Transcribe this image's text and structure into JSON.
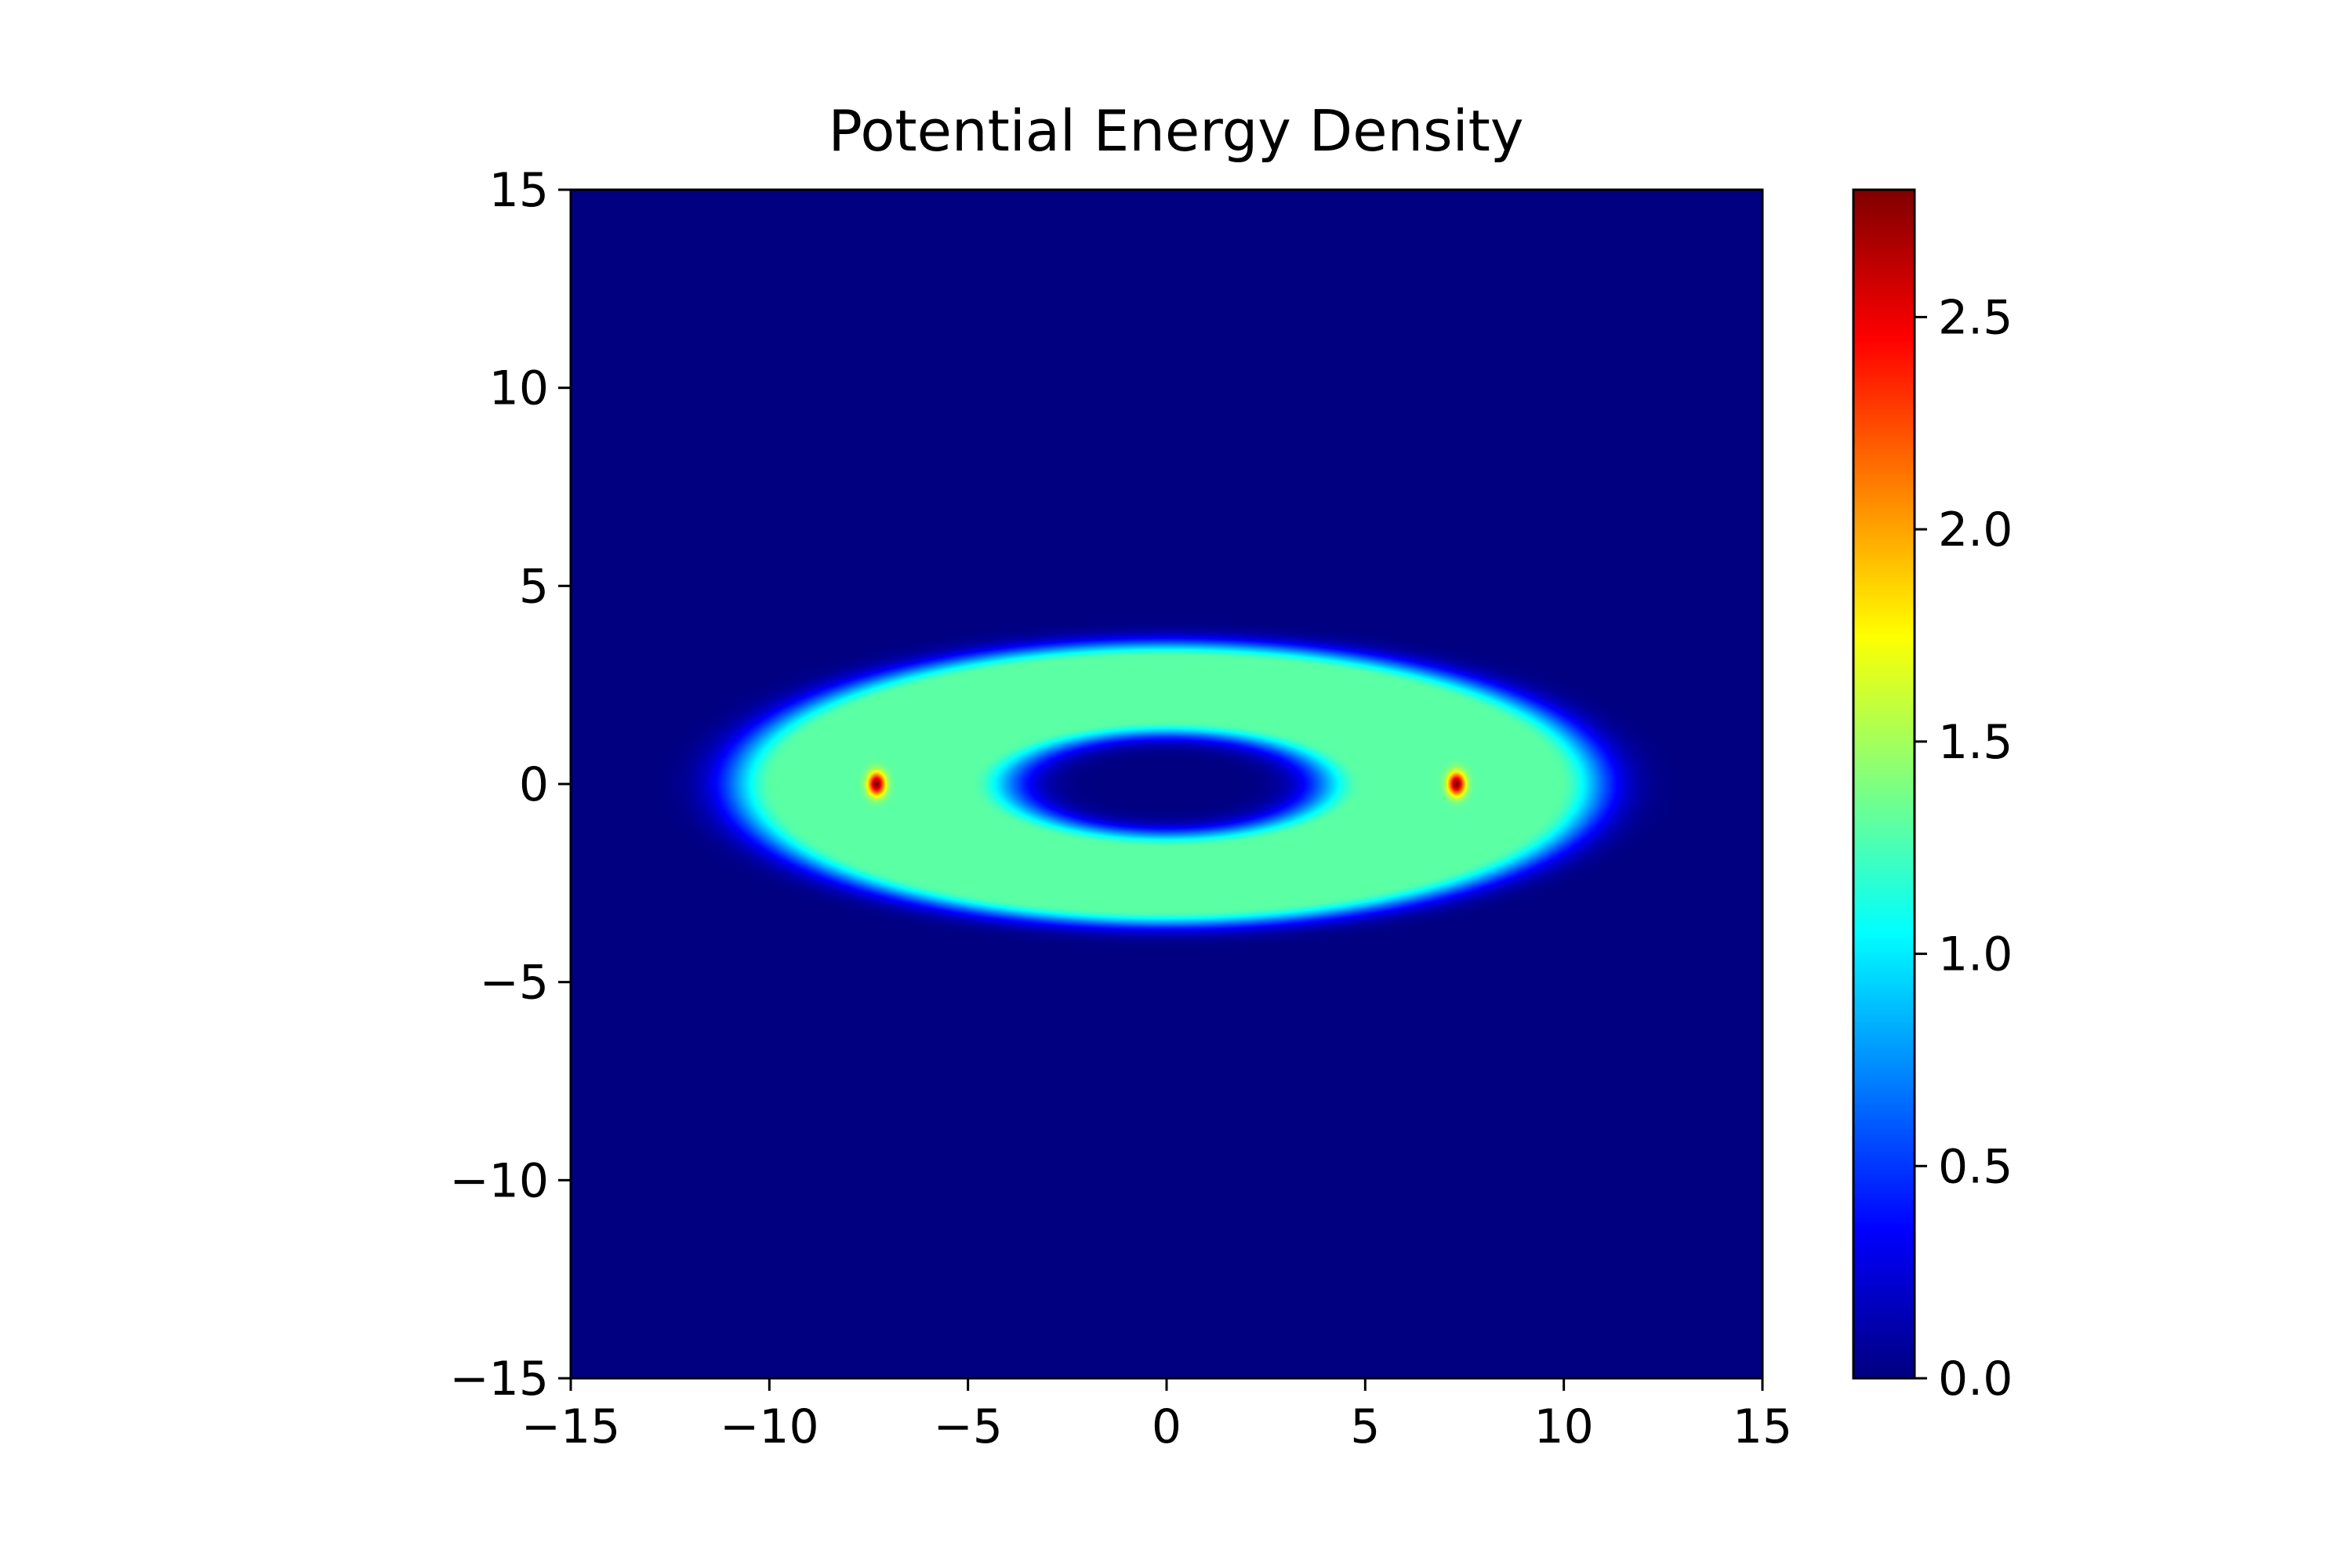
{
  "chart_data": {
    "type": "heatmap",
    "title": "Potential Energy Density",
    "xlabel": "",
    "ylabel": "",
    "xlim": [
      -15,
      15
    ],
    "ylim": [
      -15,
      15
    ],
    "x_ticks": [
      -15,
      -10,
      -5,
      0,
      5,
      10,
      15
    ],
    "x_tick_labels": [
      "−15",
      "−10",
      "−5",
      "0",
      "5",
      "10",
      "15"
    ],
    "y_ticks": [
      15,
      10,
      5,
      0,
      -5,
      -10,
      -15
    ],
    "y_tick_labels": [
      "15",
      "10",
      "5",
      "0",
      "−5",
      "−10",
      "−15"
    ],
    "colormap": "jet",
    "value_range": [
      0.0,
      2.8
    ],
    "background_value": 0.0,
    "grid": false,
    "features": {
      "ring": {
        "shape": "elliptical ring",
        "center": [
          0,
          0
        ],
        "semi_axis_x": 7.4,
        "semi_axis_y": 2.4,
        "thickness": 1.6,
        "value": 1.3
      },
      "hotspots": [
        {
          "x": -7.3,
          "y": 0,
          "value": 2.8
        },
        {
          "x": 7.3,
          "y": 0,
          "value": 2.8
        }
      ]
    },
    "colorbar": {
      "ticks": [
        0.0,
        0.5,
        1.0,
        1.5,
        2.0,
        2.5
      ],
      "tick_labels": [
        "0.0",
        "0.5",
        "1.0",
        "1.5",
        "2.0",
        "2.5"
      ],
      "range": [
        0.0,
        2.8
      ],
      "placement": "right"
    }
  }
}
